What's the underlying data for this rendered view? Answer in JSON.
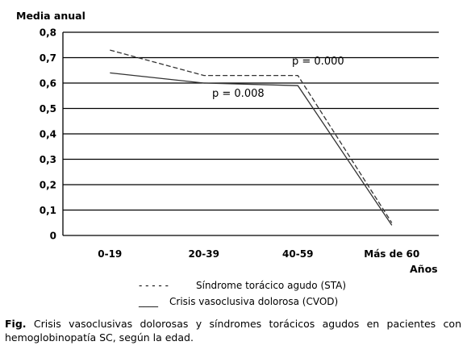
{
  "chart_data": {
    "type": "line",
    "ylabel": "Media anual",
    "xlabel": "Años",
    "ylim": [
      0,
      0.8
    ],
    "yticks": [
      "0",
      "0,1",
      "0,2",
      "0,3",
      "0,4",
      "0,5",
      "0,6",
      "0,7",
      "0,8"
    ],
    "categories": [
      "0-19",
      "20-39",
      "40-59",
      "Más de 60"
    ],
    "grid": true,
    "legend_position": "bottom",
    "series": [
      {
        "name": "Síndrome torácico agudo (STA)",
        "legend_marker": "- - - - -",
        "style": "dashed",
        "values": [
          0.73,
          0.63,
          0.63,
          0.05
        ]
      },
      {
        "name": "Crisis vasoclusiva dolorosa (CVOD)",
        "legend_marker": "____",
        "style": "solid",
        "values": [
          0.64,
          0.6,
          0.59,
          0.04
        ]
      }
    ],
    "annotations": [
      "p = 0.000",
      "p = 0.008"
    ]
  },
  "caption": {
    "label": "Fig.",
    "text": "Crisis vasoclusivas dolorosas y síndromes torácicos agudos en pacientes con hemoglobinopatía SC, según la edad."
  }
}
